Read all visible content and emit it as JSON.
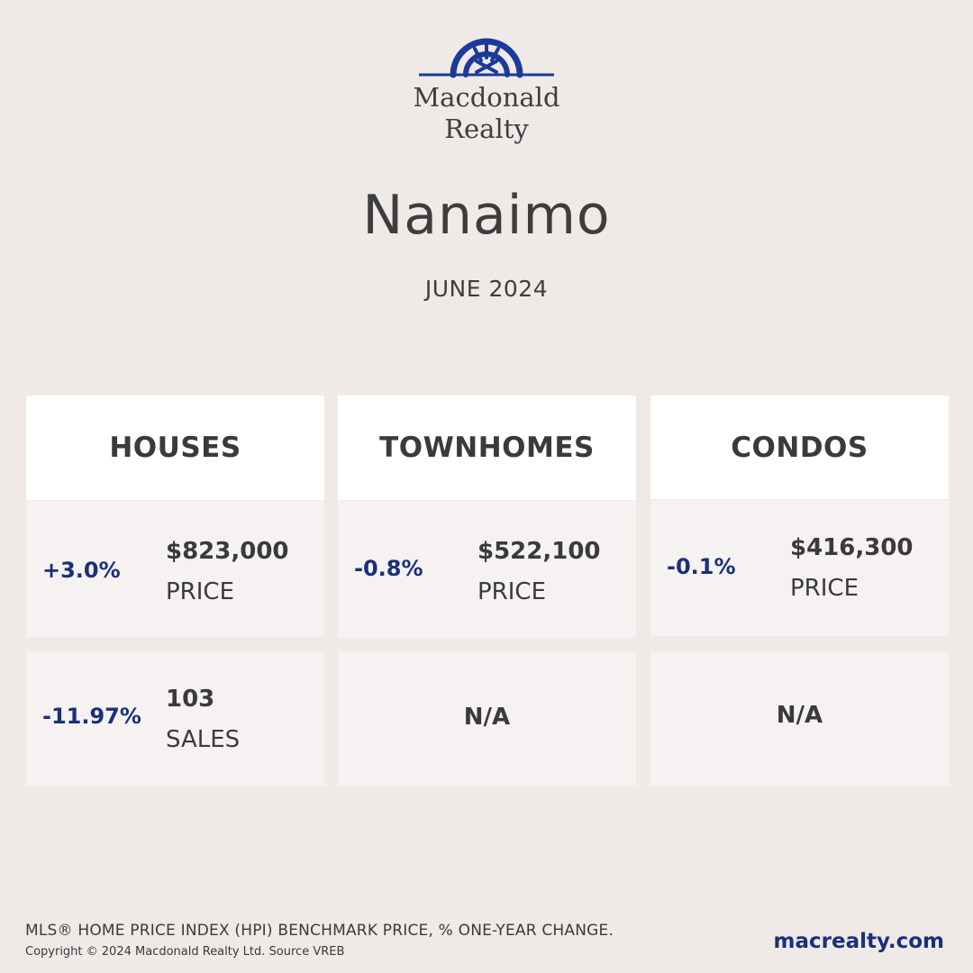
{
  "brand": {
    "logo_line1": "Macdonald",
    "logo_line2": "Realty",
    "logo_color": "#1b3a9a"
  },
  "header": {
    "city": "Nanaimo",
    "period": "JUNE 2024"
  },
  "cards": [
    {
      "title": "HOUSES",
      "price": {
        "change": "+3.0%",
        "value": "$823,000",
        "label": "PRICE"
      },
      "sales": {
        "change": "-11.97%",
        "value": "103",
        "label": "SALES"
      }
    },
    {
      "title": "TOWNHOMES",
      "price": {
        "change": "-0.8%",
        "value": "$522,100",
        "label": "PRICE"
      },
      "sales": {
        "na": "N/A"
      }
    },
    {
      "title": "CONDOS",
      "price": {
        "change": "-0.1%",
        "value": "$416,300",
        "label": "PRICE"
      },
      "sales": {
        "na": "N/A"
      }
    }
  ],
  "footer": {
    "note": "MLS® HOME PRICE INDEX (HPI) BENCHMARK PRICE, % ONE-YEAR CHANGE.",
    "copyright": "Copyright © 2024 Macdonald Realty Ltd. Source VREB",
    "website": "macrealty.com"
  },
  "colors": {
    "background": "#efeae7",
    "accent_blue": "#1b2f7b",
    "card_header": "#ffffff",
    "card_cell": "#f6f2f1"
  }
}
